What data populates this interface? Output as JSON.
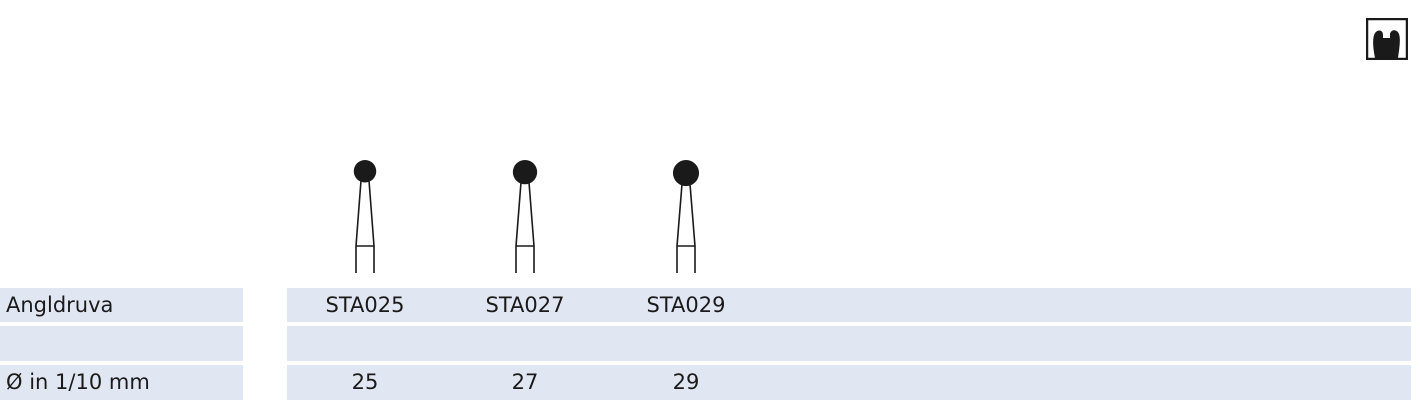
{
  "icon": "tooth-in-box-icon",
  "table": {
    "rows": [
      {
        "label": "Angldruva",
        "values": [
          "STA025",
          "STA027",
          "STA029"
        ]
      },
      {
        "label": "",
        "values": [
          "",
          "",
          ""
        ]
      },
      {
        "label": "Ø in 1/10 mm",
        "values": [
          "25",
          "27",
          "29"
        ]
      }
    ]
  },
  "burs": [
    {
      "code": "STA025",
      "diameter": 25
    },
    {
      "code": "STA027",
      "diameter": 27
    },
    {
      "code": "STA029",
      "diameter": 29
    }
  ],
  "colors": {
    "row_bg": "#e1e7f2",
    "ink": "#1a1a1a"
  }
}
